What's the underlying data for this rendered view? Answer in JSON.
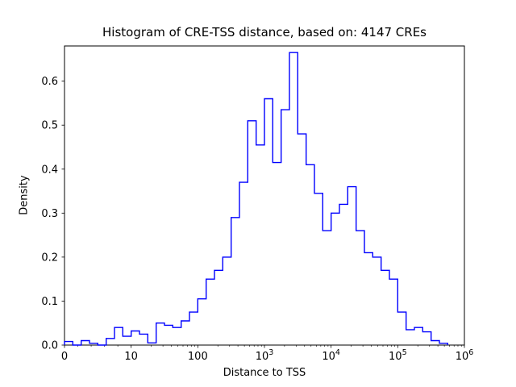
{
  "chart_data": {
    "type": "histogram",
    "histtype": "step",
    "title": "Histogram of CRE-TSS distance, based on: 4147 CREs",
    "xlabel": "Distance to TSS",
    "ylabel": "Density",
    "n_cres": 4147,
    "line_color": "#0000ff",
    "axis_color": "#000000",
    "x_scale": "symlog (linear 0-10, then log decades up to 1e6)",
    "x_ticks": [
      {
        "u": 0,
        "label": "0"
      },
      {
        "u": 1,
        "label": "10"
      },
      {
        "u": 2,
        "label": "100"
      },
      {
        "u": 3,
        "label": "10^3"
      },
      {
        "u": 4,
        "label": "10^4"
      },
      {
        "u": 5,
        "label": "10^5"
      },
      {
        "u": 6,
        "label": "10^6"
      }
    ],
    "y_ticks": [
      {
        "v": 0.0,
        "label": "0.0"
      },
      {
        "v": 0.1,
        "label": "0.1"
      },
      {
        "v": 0.2,
        "label": "0.2"
      },
      {
        "v": 0.3,
        "label": "0.3"
      },
      {
        "v": 0.4,
        "label": "0.4"
      },
      {
        "v": 0.5,
        "label": "0.5"
      },
      {
        "v": 0.6,
        "label": "0.6"
      }
    ],
    "ylim": [
      0,
      0.68
    ],
    "bins": {
      "u_min": 0,
      "u_max": 6,
      "count": 48,
      "note": "bins uniform in transformed axis units u; u=x/10 for x<=10, u=1+log10(x/10) for x>10"
    },
    "densities": [
      0.008,
      0.0,
      0.01,
      0.004,
      0.0,
      0.015,
      0.04,
      0.02,
      0.032,
      0.025,
      0.005,
      0.05,
      0.045,
      0.04,
      0.055,
      0.075,
      0.105,
      0.15,
      0.17,
      0.2,
      0.29,
      0.37,
      0.51,
      0.455,
      0.56,
      0.415,
      0.535,
      0.665,
      0.48,
      0.41,
      0.345,
      0.26,
      0.3,
      0.32,
      0.36,
      0.26,
      0.21,
      0.2,
      0.17,
      0.15,
      0.075,
      0.035,
      0.04,
      0.03,
      0.01,
      0.004,
      0.0,
      0.0
    ]
  }
}
